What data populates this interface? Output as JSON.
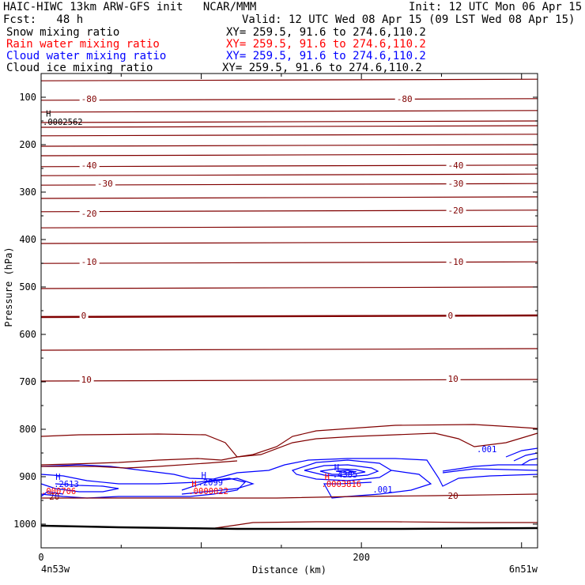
{
  "header": {
    "left_title": "HAIC-HIWC 13km ARW-GFS init   NCAR/MMM",
    "init": "Init: 12 UTC Mon 06 Apr 15",
    "fcst": "Fcst:   48 h",
    "valid": "Valid: 12 UTC Wed 08 Apr 15 (09 LST Wed 08 Apr 15)"
  },
  "fields": [
    {
      "label": "Snow mixing ratio",
      "xy": "XY= 259.5, 91.6 to 274.6,110.2",
      "color": "#000000"
    },
    {
      "label": "Rain water mixing ratio",
      "xy": "XY= 259.5, 91.6 to 274.6,110.2",
      "color": "#ff0000"
    },
    {
      "label": "Cloud water mixing ratio",
      "xy": "XY= 259.5, 91.6 to 274.6,110.2",
      "color": "#0000ff"
    },
    {
      "label": "Cloud ice mixing ratio",
      "xy": "XY= 259.5, 91.6 to 274.6,110.2",
      "color": "#000000"
    }
  ],
  "chart_data": {
    "type": "contour",
    "xlabel": "Distance (km)",
    "ylabel": "Pressure (hPa)",
    "xlim": [
      0,
      310
    ],
    "ylim": [
      1050,
      50
    ],
    "x_ticks": [
      0,
      200
    ],
    "y_ticks": [
      100,
      200,
      300,
      400,
      500,
      600,
      700,
      800,
      900,
      1000
    ],
    "endpoints": [
      "4n53w",
      "6n51w"
    ],
    "temperature_labels": [
      {
        "value": "-80",
        "x": 25,
        "p": 103
      },
      {
        "value": "-80",
        "x": 222,
        "p": 103
      },
      {
        "value": "-40",
        "x": 25,
        "p": 243
      },
      {
        "value": "-40",
        "x": 254,
        "p": 243
      },
      {
        "value": "-30",
        "x": 35,
        "p": 282
      },
      {
        "value": "-30",
        "x": 254,
        "p": 282
      },
      {
        "value": "-20",
        "x": 25,
        "p": 345
      },
      {
        "value": "-20",
        "x": 254,
        "p": 338
      },
      {
        "value": "-10",
        "x": 25,
        "p": 447
      },
      {
        "value": "-10",
        "x": 254,
        "p": 447
      },
      {
        "value": "0",
        "x": 25,
        "p": 560
      },
      {
        "value": "0",
        "x": 254,
        "p": 560
      },
      {
        "value": "10",
        "x": 25,
        "p": 695
      },
      {
        "value": "10",
        "x": 254,
        "p": 693
      },
      {
        "value": "20",
        "x": 5,
        "p": 942
      },
      {
        "value": "20",
        "x": 254,
        "p": 940
      }
    ],
    "temperature_isotherms_p": [
      62,
      103,
      128,
      150,
      160,
      178,
      200,
      220,
      243,
      262,
      282,
      310,
      338,
      372,
      405,
      447,
      500,
      560,
      630,
      695
    ],
    "field_labels": [
      {
        "text": "H",
        "x": 3,
        "p": 134,
        "color": "#000000"
      },
      {
        "text": ".0002562",
        "x": 1,
        "p": 152,
        "color": "#000000"
      },
      {
        "text": "H",
        "x": 100,
        "p": 897,
        "color": "#0000ff"
      },
      {
        "text": ".2099",
        "x": 98,
        "p": 912,
        "color": "#0000ff"
      },
      {
        "text": "H",
        "x": 94,
        "p": 915,
        "color": "#ff0000"
      },
      {
        "text": ".0000022",
        "x": 92,
        "p": 930,
        "color": "#ff0000"
      },
      {
        "text": "H",
        "x": 183,
        "p": 880,
        "color": "#0000ff"
      },
      {
        "text": ".4385",
        "x": 182,
        "p": 895,
        "color": "#0000ff"
      },
      {
        "text": "H",
        "x": 177,
        "p": 900,
        "color": "#ff0000"
      },
      {
        "text": ".0003816",
        "x": 175,
        "p": 915,
        "color": "#ff0000"
      },
      {
        "text": "H",
        "x": 9,
        "p": 900,
        "color": "#0000ff"
      },
      {
        "text": ".2613",
        "x": 8,
        "p": 915,
        "color": "#0000ff"
      },
      {
        "text": ".000706",
        "x": 0,
        "p": 930,
        "color": "#ff0000"
      },
      {
        "text": ".001",
        "x": 207,
        "p": 927,
        "color": "#0000ff"
      },
      {
        "text": ".001",
        "x": 272,
        "p": 842,
        "color": "#0000ff"
      }
    ]
  }
}
